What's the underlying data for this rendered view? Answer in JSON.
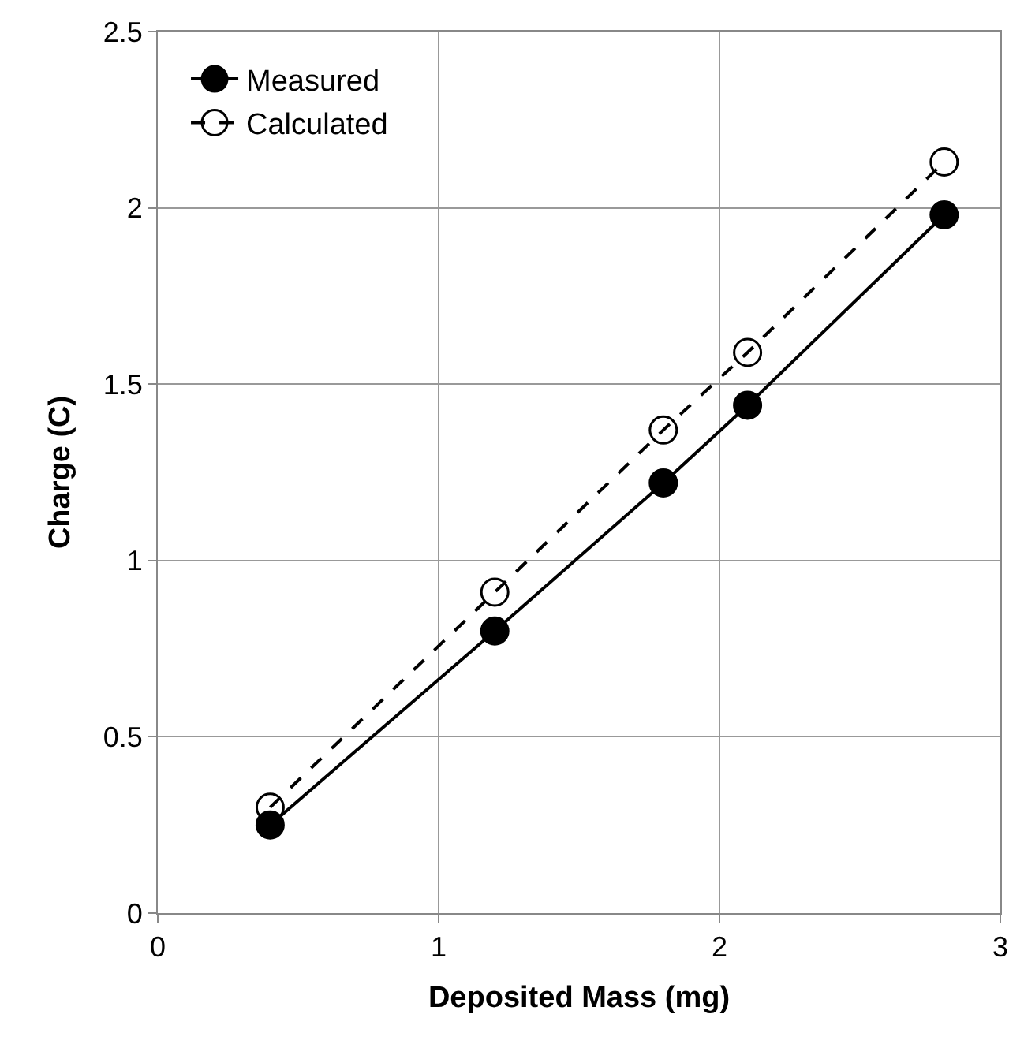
{
  "chart_data": {
    "type": "line",
    "xlabel": "Deposited Mass (mg)",
    "ylabel": "Charge (C)",
    "xlim": [
      0,
      3
    ],
    "xticks": [
      0,
      1,
      2,
      3
    ],
    "ylim": [
      0,
      2.5
    ],
    "yticks": [
      0,
      0.5,
      1,
      1.5,
      2,
      2.5
    ],
    "grid": true,
    "legend": "top left",
    "marker": "circle",
    "series": [
      {
        "name": "Measured",
        "color": "#000000",
        "x": [
          0.4,
          1.2,
          1.8,
          2.1,
          2.8
        ],
        "values": [
          0.25,
          0.8,
          1.22,
          1.44,
          1.98
        ],
        "line_style": "solid"
      },
      {
        "name": "Calculated",
        "color": "#000000",
        "x": [
          0.4,
          1.2,
          1.8,
          2.1,
          2.8
        ],
        "values": [
          0.3,
          0.91,
          1.37,
          1.59,
          2.13
        ],
        "line_style": "dashed"
      }
    ]
  }
}
